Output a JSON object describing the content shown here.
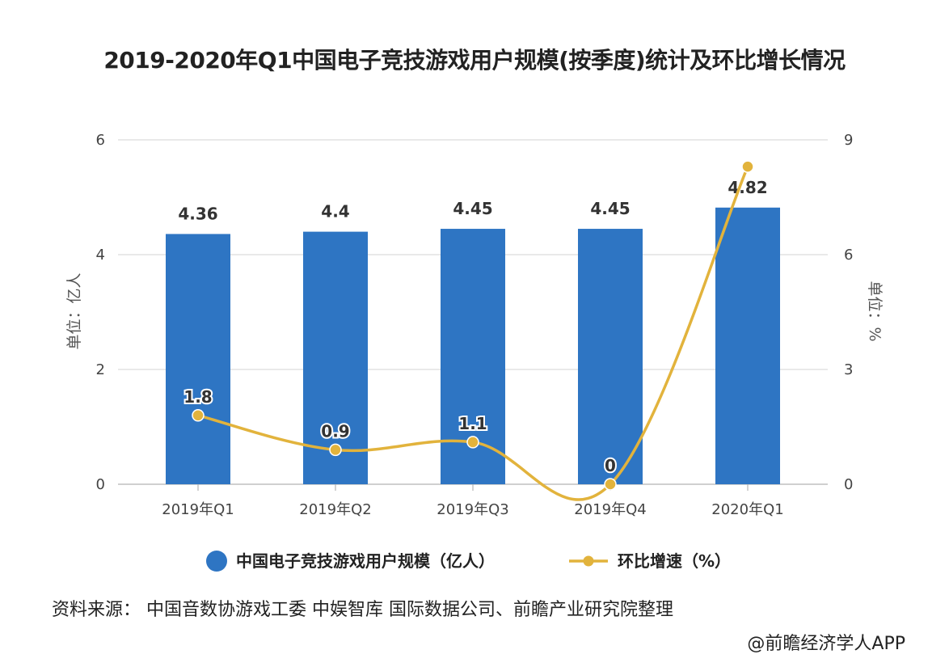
{
  "chart_data": {
    "type": "bar",
    "title": "2019-2020年Q1中国电子竞技游戏用户规模(按季度)统计及环比增长情况",
    "categories": [
      "2019年Q1",
      "2019年Q2",
      "2019年Q3",
      "2019年Q4",
      "2020年Q1"
    ],
    "series": [
      {
        "name": "中国电子竞技游戏用户规模（亿人）",
        "type": "bar",
        "axis": "left",
        "values": [
          4.36,
          4.4,
          4.45,
          4.45,
          4.82
        ],
        "labels": [
          "4.36",
          "4.4",
          "4.45",
          "4.45",
          "4.82"
        ],
        "color": "#2e75c3"
      },
      {
        "name": "环比增速（%）",
        "type": "line",
        "axis": "right",
        "values": [
          1.8,
          0.9,
          1.1,
          0,
          8.3
        ],
        "labels": [
          "1.8",
          "0.9",
          "1.1",
          "0",
          ""
        ],
        "color": "#e2b33c"
      }
    ],
    "y_left": {
      "label": "单位：亿人",
      "ylim": [
        0,
        6
      ],
      "ticks": [
        0,
        2,
        4,
        6
      ]
    },
    "y_right": {
      "label": "单位：%",
      "ylim": [
        0,
        9
      ],
      "ticks": [
        0,
        3,
        6,
        9
      ]
    },
    "grid": true,
    "legend_position": "bottom"
  },
  "source_note": "资料来源：  中国音数协游戏工委  中娱智库  国际数据公司、前瞻产业研究院整理",
  "brand_credit": "@前瞻经济学人APP"
}
